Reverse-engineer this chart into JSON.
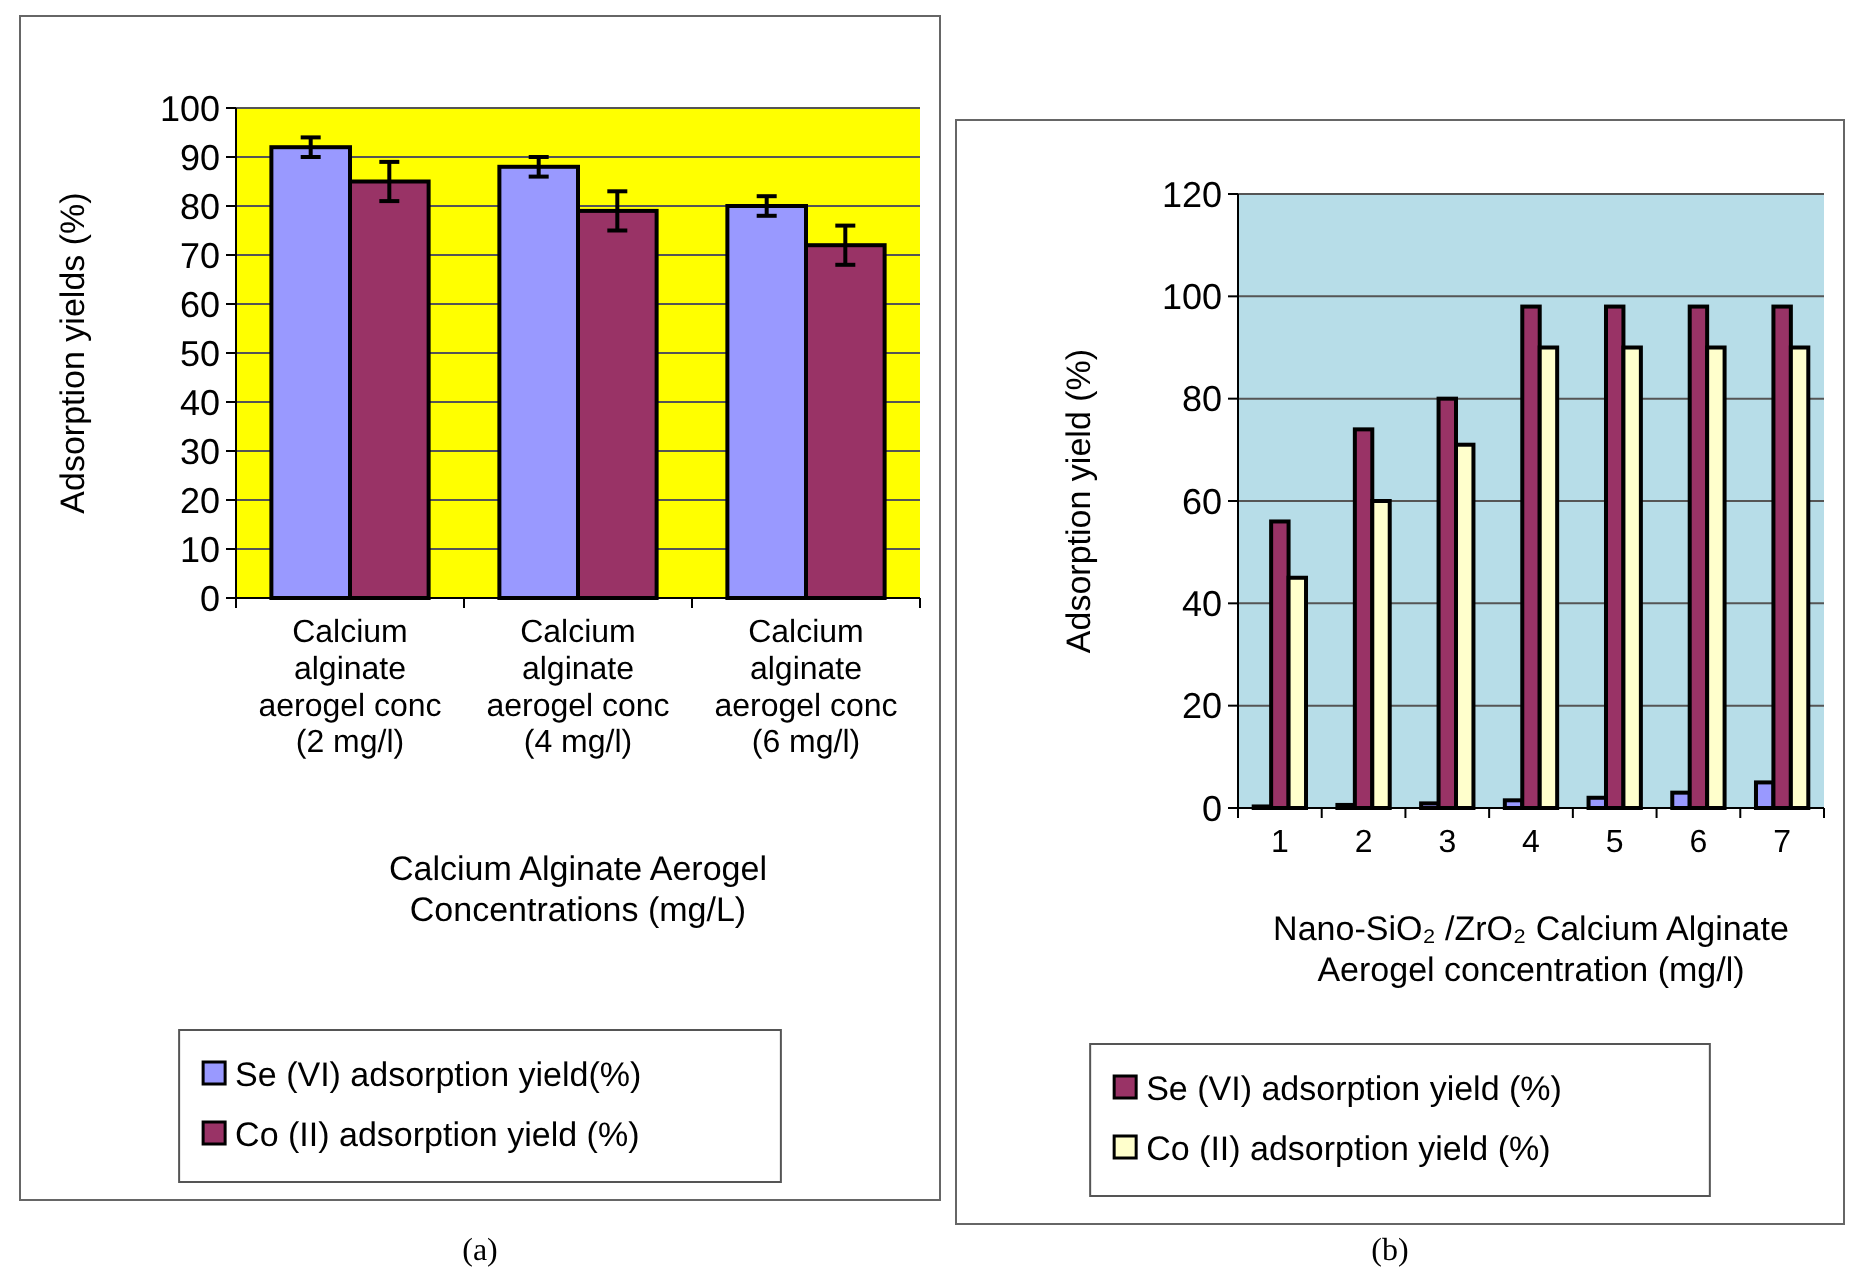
{
  "chart_data": [
    {
      "type": "bar",
      "xlabel": "Calcium Alginate Aerogel Concentrations (mg/L)",
      "ylabel": "Adsorption yields (%)",
      "categories": [
        "Calcium alginate aerogel conc (2 mg/l)",
        "Calcium alginate aerogel conc (4 mg/l)",
        "Calcium alginate aerogel conc (6 mg/l)"
      ],
      "series": [
        {
          "name": "Se (VI) adsorption yield(%)",
          "color": "#9999ff",
          "values": [
            92,
            88,
            80
          ],
          "errors": [
            2,
            2,
            2
          ]
        },
        {
          "name": "Co (II) adsorption yield (%)",
          "color": "#993366",
          "values": [
            85,
            79,
            72
          ],
          "errors": [
            4,
            4,
            4
          ]
        }
      ],
      "ylim": [
        0,
        100
      ],
      "yticks": [
        0,
        10,
        20,
        30,
        40,
        50,
        60,
        70,
        80,
        90,
        100
      ],
      "grid": "y",
      "legend": "bottom",
      "annotations": [
        "(a)"
      ]
    },
    {
      "type": "bar",
      "xlabel": "Nano-SiO₂ /ZrO₂ Calcium Alginate Aerogel concentration (mg/l)",
      "ylabel": "Adsorption yield (%)",
      "categories": [
        "1",
        "2",
        "3",
        "4",
        "5",
        "6",
        "7"
      ],
      "series": [
        {
          "color": "#9999ff",
          "values": [
            0.3,
            0.6,
            0.9,
            1.5,
            2,
            3,
            5
          ]
        },
        {
          "name": "Se (VI)  adsorption yield (%)",
          "color": "#993366",
          "values": [
            56,
            74,
            80,
            98,
            98,
            98,
            98
          ]
        },
        {
          "name": "Co (II) adsorption yield (%)",
          "color": "#ffffcc",
          "values": [
            45,
            60,
            71,
            90,
            90,
            90,
            90
          ]
        }
      ],
      "ylim": [
        0,
        120
      ],
      "yticks": [
        0,
        20,
        40,
        60,
        80,
        100,
        120
      ],
      "grid": "y",
      "legend": "bottom",
      "annotations": [
        "(b)"
      ]
    }
  ]
}
